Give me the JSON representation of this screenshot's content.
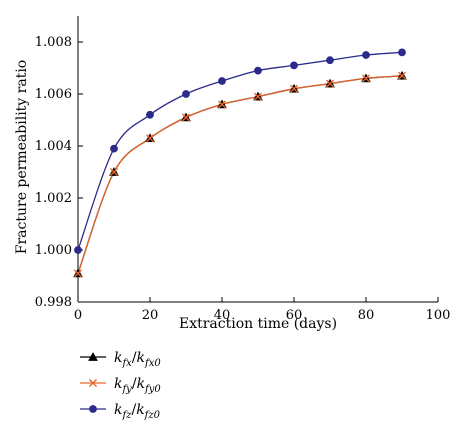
{
  "chart_data": {
    "type": "line",
    "title": "",
    "xlabel": "Extraction time (days)",
    "ylabel": "Fracture permeability ratio",
    "xlim": [
      0,
      100
    ],
    "ylim": [
      0.998,
      1.009
    ],
    "x_ticks": [
      "0",
      "20",
      "40",
      "60",
      "80",
      "100"
    ],
    "y_ticks": [
      "0.998",
      "1.000",
      "1.002",
      "1.004",
      "1.006",
      "1.008"
    ],
    "grid": false,
    "legend_position": "below",
    "x": [
      0,
      10,
      20,
      30,
      40,
      50,
      60,
      70,
      80,
      90
    ],
    "series": [
      {
        "name_main": "k",
        "name_sub1": "fx",
        "name_sub2": "fx0",
        "marker": "triangle",
        "color": "#000000",
        "values": [
          0.9991,
          1.003,
          1.0043,
          1.0051,
          1.0056,
          1.0059,
          1.0062,
          1.0064,
          1.0066,
          1.0067
        ]
      },
      {
        "name_main": "k",
        "name_sub1": "fy",
        "name_sub2": "fy0",
        "marker": "x",
        "color": "#e8642c",
        "values": [
          0.9991,
          1.003,
          1.0043,
          1.0051,
          1.0056,
          1.0059,
          1.0062,
          1.0064,
          1.0066,
          1.0067
        ]
      },
      {
        "name_main": "k",
        "name_sub1": "fz",
        "name_sub2": "fz0",
        "marker": "circle",
        "color": "#2b2b8c",
        "values": [
          1.0,
          1.0039,
          1.0052,
          1.006,
          1.0065,
          1.0069,
          1.0071,
          1.0073,
          1.0075,
          1.0076
        ]
      }
    ]
  }
}
